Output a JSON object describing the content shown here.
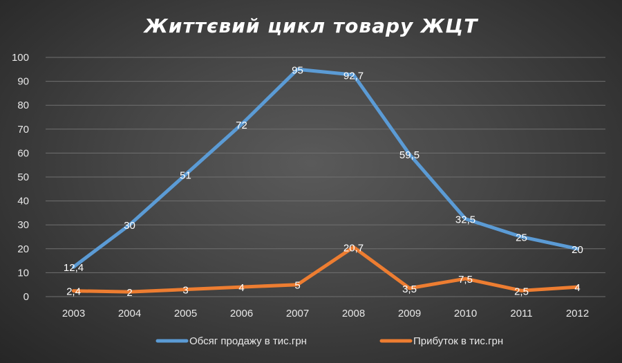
{
  "chart_data": {
    "type": "line",
    "title": "Життєвий цикл товару ЖЦТ",
    "categories": [
      "2003",
      "2004",
      "2005",
      "2006",
      "2007",
      "2008",
      "2009",
      "2010",
      "2011",
      "2012"
    ],
    "series": [
      {
        "name": "Обсяг продажу в тис.грн",
        "color": "#5b9bd5",
        "values": [
          12.4,
          30,
          51,
          72,
          95,
          92.7,
          59.5,
          32.5,
          25,
          20
        ],
        "labels": [
          "12,4",
          "30",
          "51",
          "72",
          "95",
          "92,7",
          "59,5",
          "32,5",
          "25",
          "20"
        ]
      },
      {
        "name": "Прибуток в тис.грн",
        "color": "#ed7d31",
        "values": [
          2.4,
          2,
          3,
          4,
          5,
          20.7,
          3.5,
          7.5,
          2.5,
          4
        ],
        "labels": [
          "2,4",
          "2",
          "3",
          "4",
          "5",
          "20,7",
          "3,5",
          "7,5",
          "2,5",
          "4"
        ]
      }
    ],
    "ylim": [
      0,
      100
    ],
    "yticks": [
      0,
      10,
      20,
      30,
      40,
      50,
      60,
      70,
      80,
      90,
      100
    ],
    "grid": true,
    "legend_position": "bottom"
  }
}
